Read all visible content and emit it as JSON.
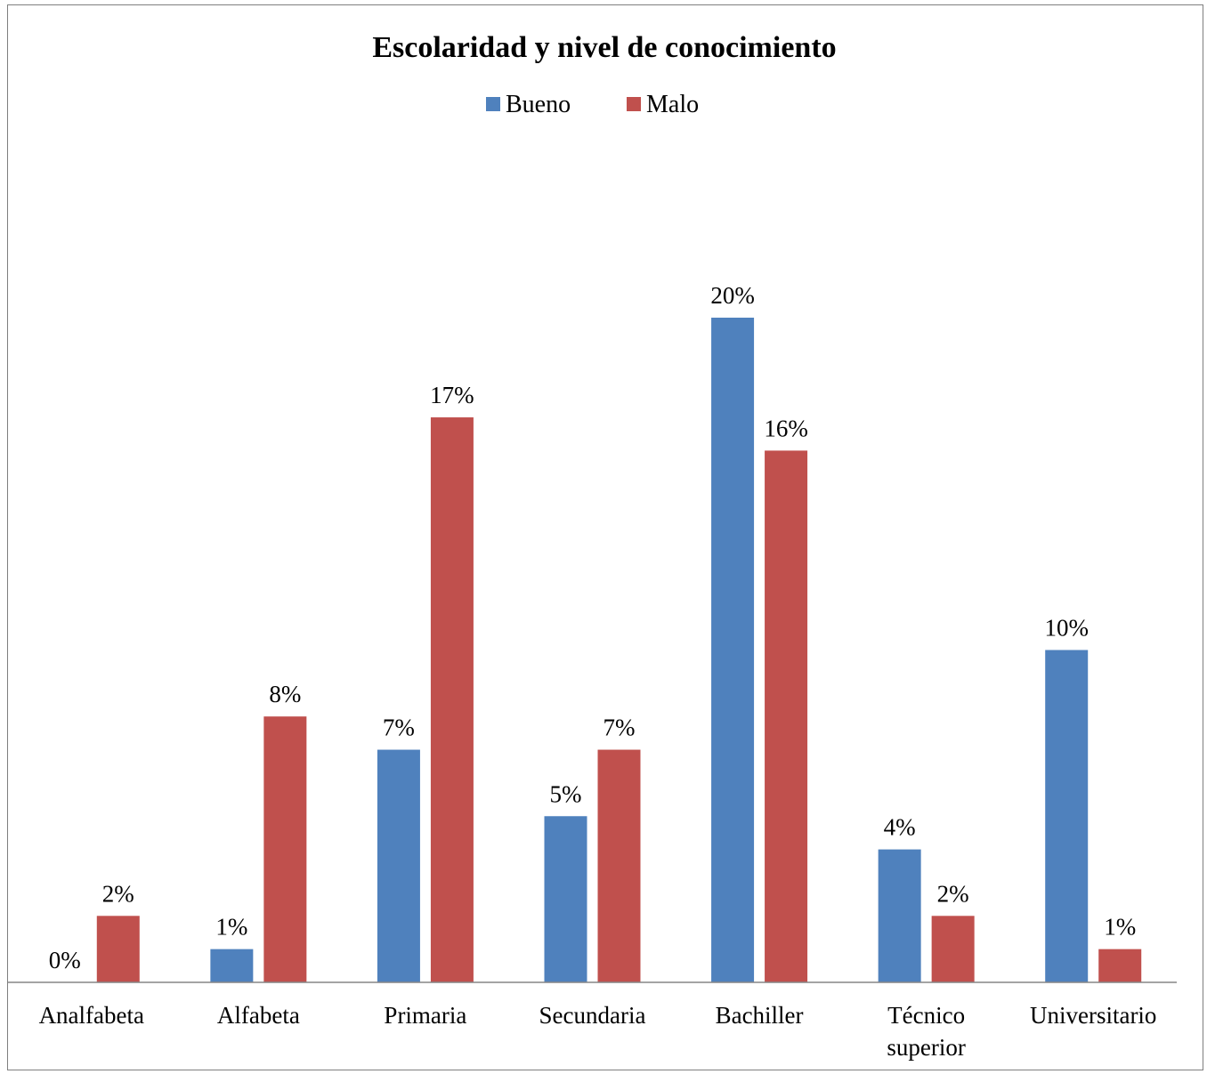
{
  "chart_data": {
    "type": "bar",
    "title": "Escolaridad y nivel de conocimiento",
    "categories": [
      [
        "Analfabeta"
      ],
      [
        "Alfabeta"
      ],
      [
        "Primaria"
      ],
      [
        "Secundaria"
      ],
      [
        "Bachiller"
      ],
      [
        "Técnico",
        "superior"
      ],
      [
        "Universitario"
      ]
    ],
    "series": [
      {
        "name": "Bueno",
        "color": "#4f81bd",
        "values": [
          0,
          1,
          7,
          5,
          20,
          4,
          10
        ],
        "labels": [
          "0%",
          "1%",
          "7%",
          "5%",
          "20%",
          "4%",
          "10%"
        ]
      },
      {
        "name": "Malo",
        "color": "#c0504d",
        "values": [
          2,
          8,
          17,
          7,
          16,
          2,
          1
        ],
        "labels": [
          "2%",
          "8%",
          "17%",
          "7%",
          "16%",
          "2%",
          "1%"
        ]
      }
    ],
    "ylim": [
      0,
      20
    ],
    "legend": "top-center",
    "grid": false,
    "xlabel": "",
    "ylabel": ""
  }
}
